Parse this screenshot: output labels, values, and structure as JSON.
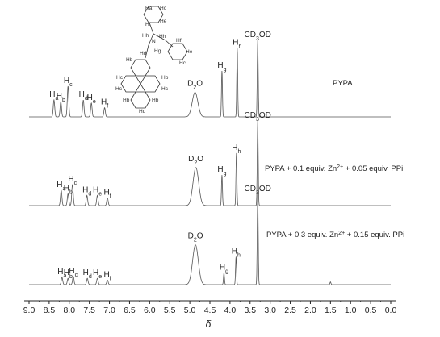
{
  "chart_data": {
    "type": "line",
    "xlabel": "δ",
    "xlim": [
      9.0,
      0.0
    ],
    "x_ticks": [
      "9.0",
      "8.5",
      "8.0",
      "7.5",
      "7.0",
      "6.5",
      "6.0",
      "5.5",
      "5.0",
      "4.5",
      "4.0",
      "3.5",
      "3.0",
      "2.5",
      "2.0",
      "1.5",
      "1.0",
      "0.5",
      "0.0"
    ],
    "x_tick_values": [
      9.0,
      8.5,
      8.0,
      7.5,
      7.0,
      6.5,
      6.0,
      5.5,
      5.0,
      4.5,
      4.0,
      3.5,
      3.0,
      2.5,
      2.0,
      1.5,
      1.0,
      0.5,
      0.0
    ],
    "spectra": [
      {
        "name": "PYPA",
        "peaks": [
          {
            "label": "Ha",
            "ppm": 8.38,
            "height": 0.22
          },
          {
            "label": "Hb",
            "ppm": 8.21,
            "height": 0.2
          },
          {
            "label": "Hc",
            "ppm": 8.03,
            "height": 0.4
          },
          {
            "label": "Hd",
            "ppm": 7.65,
            "height": 0.22
          },
          {
            "label": "He",
            "ppm": 7.45,
            "height": 0.18
          },
          {
            "label": "Hf",
            "ppm": 7.12,
            "height": 0.12
          },
          {
            "label": "D2O",
            "ppm": 4.87,
            "height": 0.32,
            "broad": true
          },
          {
            "label": "Hg",
            "ppm": 4.2,
            "height": 0.6
          },
          {
            "label": "Hh",
            "ppm": 3.82,
            "height": 0.9
          },
          {
            "label": "CD3OD",
            "ppm": 3.31,
            "height": 1.0
          }
        ]
      },
      {
        "name": "PYPA + 0.1 equiv. Zn2+ + 0.05 equiv. PPi",
        "peaks": [
          {
            "label": "Ha",
            "ppm": 8.2,
            "height": 0.18
          },
          {
            "label": "Hb",
            "ppm": 8.03,
            "height": 0.14
          },
          {
            "label": "Hc",
            "ppm": 7.92,
            "height": 0.25
          },
          {
            "label": "Hd",
            "ppm": 7.56,
            "height": 0.12
          },
          {
            "label": "He",
            "ppm": 7.3,
            "height": 0.12
          },
          {
            "label": "Hf",
            "ppm": 7.05,
            "height": 0.09
          },
          {
            "label": "D2O",
            "ppm": 4.85,
            "height": 0.45,
            "broad": true
          },
          {
            "label": "Hg",
            "ppm": 4.2,
            "height": 0.36
          },
          {
            "label": "Hh",
            "ppm": 3.84,
            "height": 0.62
          },
          {
            "label": "CD3OD",
            "ppm": 3.31,
            "height": 1.0
          }
        ]
      },
      {
        "name": "PYPA + 0.3 equiv. Zn2+ + 0.15 equiv. PPi",
        "peaks": [
          {
            "label": "Ha",
            "ppm": 8.18,
            "height": 0.08
          },
          {
            "label": "Hb",
            "ppm": 8.03,
            "height": 0.07
          },
          {
            "label": "Hc",
            "ppm": 7.9,
            "height": 0.09
          },
          {
            "label": "Hd",
            "ppm": 7.55,
            "height": 0.07
          },
          {
            "label": "He",
            "ppm": 7.3,
            "height": 0.07
          },
          {
            "label": "Hf",
            "ppm": 7.05,
            "height": 0.05
          },
          {
            "label": "D2O",
            "ppm": 4.86,
            "height": 0.44,
            "broad": true
          },
          {
            "label": "Hg",
            "ppm": 4.15,
            "height": 0.13
          },
          {
            "label": "Hh",
            "ppm": 3.85,
            "height": 0.31
          },
          {
            "label": "CD3OD",
            "ppm": 3.31,
            "height": 1.0
          },
          {
            "label": "",
            "ppm": 1.5,
            "height": 0.03
          }
        ]
      }
    ],
    "grid": false,
    "legend": "none"
  },
  "structure_labels": {
    "top_ring": [
      "Ha",
      "Hc",
      "He",
      "Hf"
    ],
    "right_ring": [
      "Hh",
      "Hf",
      "He",
      "Hc"
    ],
    "linker": [
      "Hh",
      "N",
      "Hh",
      "Hg"
    ],
    "pyrene": [
      "Hd",
      "Hb",
      "Hc",
      "Hc",
      "Hb",
      "Hc",
      "Hb",
      "Hd",
      "Hb"
    ]
  },
  "colors": {
    "spectrum": "#555555",
    "axis": "#222222",
    "text": "#222222"
  }
}
